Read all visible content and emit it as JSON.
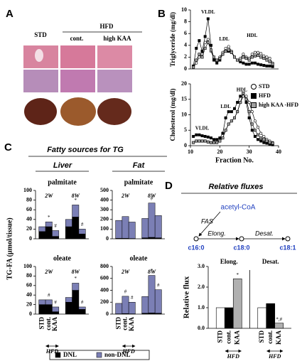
{
  "panel_labels": [
    "A",
    "B",
    "C",
    "D"
  ],
  "panel_a": {
    "std": "STD",
    "hfd": "HFD",
    "cont": "cont.",
    "high_kaa": "high KAA"
  },
  "panel_c": {
    "title": "Fatty sources for TG",
    "columns": [
      "Liver",
      "Fat"
    ],
    "y_label": "TG-FA (µmol/tissue)",
    "hfd": "HFD"
  },
  "panel_d": {
    "title": "Relative fluxes",
    "acetyl_coa": "acetyl-CoA",
    "fas": "FAS",
    "elong": "Elong.",
    "desat": "Desat.",
    "c16": "c16:0",
    "c18_0": "c18:0",
    "c18_1": "c18:1",
    "hfd": "HFD"
  },
  "chart_data": [
    {
      "type": "line",
      "y_label": "Triglyceride (mg/dl)",
      "xlim": [
        10,
        40
      ],
      "ylim": [
        0,
        10
      ],
      "yticks": [
        0,
        2,
        4,
        6,
        8,
        10
      ],
      "annotations": [
        "VLDL",
        "LDL",
        "HDL"
      ],
      "x": [
        11,
        12,
        13,
        14,
        15,
        16,
        17,
        18,
        19,
        20,
        21,
        22,
        23,
        24,
        25,
        26,
        27,
        28,
        29,
        30,
        31,
        32,
        33,
        34,
        35,
        36,
        37,
        38
      ],
      "series": [
        {
          "name": "STD",
          "color": "#ffffff",
          "marker": "circle",
          "values": [
            0.3,
            1.0,
            2.0,
            2.5,
            4.5,
            5.0,
            3.0,
            1.8,
            1.5,
            2.0,
            2.8,
            3.5,
            3.8,
            3.0,
            2.0,
            1.5,
            1.8,
            2.5,
            2.0,
            1.8,
            2.5,
            2.8,
            2.8,
            2.6,
            2.2,
            2.0,
            1.8,
            1.0
          ]
        },
        {
          "name": "HFD",
          "color": "#000000",
          "marker": "square",
          "values": [
            0.5,
            3.5,
            4.8,
            3.0,
            5.5,
            8.5,
            4.0,
            1.5,
            1.0,
            1.5,
            2.5,
            3.0,
            3.0,
            2.8,
            2.0,
            1.5,
            1.2,
            1.0,
            0.8,
            0.8,
            1.0,
            1.0,
            0.8,
            0.7,
            0.6,
            0.5,
            0.5,
            0.4
          ]
        },
        {
          "name": "high KAA-HFD",
          "color": "#a0a0a0",
          "marker": "square",
          "values": [
            0.3,
            1.5,
            2.5,
            2.0,
            3.5,
            4.5,
            3.2,
            2.0,
            1.5,
            1.8,
            2.5,
            3.0,
            3.2,
            2.8,
            2.0,
            1.5,
            1.5,
            2.0,
            1.8,
            1.5,
            2.0,
            2.2,
            2.3,
            2.0,
            1.8,
            1.5,
            1.2,
            0.8
          ]
        }
      ]
    },
    {
      "type": "line",
      "y_label": "Cholesterol (mg/dl)",
      "x_label": "Fraction No.",
      "xlim": [
        10,
        40
      ],
      "xticks": [
        10,
        20,
        30,
        40
      ],
      "ylim": [
        0,
        20
      ],
      "yticks": [
        0,
        5,
        10,
        15,
        20
      ],
      "annotations": [
        "VLDL",
        "LDL",
        "HDL"
      ],
      "legend": "upper right",
      "x": [
        11,
        12,
        13,
        14,
        15,
        16,
        17,
        18,
        19,
        20,
        21,
        22,
        23,
        24,
        25,
        26,
        27,
        28,
        29,
        30,
        31,
        32,
        33,
        34,
        35,
        36,
        37,
        38
      ],
      "series": [
        {
          "name": "STD",
          "color": "#ffffff",
          "marker": "circle",
          "values": [
            1,
            1.5,
            1.5,
            1.5,
            1.5,
            1.2,
            1,
            1,
            1,
            1.5,
            2.5,
            5,
            7,
            8,
            9,
            11,
            14,
            16,
            16,
            14,
            11,
            8,
            6,
            4,
            3,
            2,
            1.5,
            1
          ]
        },
        {
          "name": "HFD",
          "color": "#000000",
          "marker": "square",
          "values": [
            3,
            3.5,
            3.5,
            3.2,
            3,
            2.8,
            2.5,
            2,
            2,
            2.5,
            4,
            9,
            11,
            11,
            12,
            14,
            16,
            17,
            14,
            9,
            5,
            3,
            2,
            1.5,
            1,
            0.8,
            0.5,
            0.3
          ]
        },
        {
          "name": "high KAA -HFD",
          "color": "#a0a0a0",
          "marker": "square",
          "values": [
            1,
            1.5,
            1.5,
            1.5,
            1.5,
            1.2,
            1,
            1,
            1,
            1.5,
            2.5,
            5,
            7,
            8,
            9,
            11,
            14,
            17,
            15,
            11,
            7,
            5,
            3.5,
            2.5,
            2,
            1.5,
            1,
            0.8
          ]
        }
      ]
    },
    {
      "type": "stacked_bar",
      "title": "palmitate",
      "groups": [
        "2W",
        "8W"
      ],
      "ylim": [
        0,
        100
      ],
      "yticks": [
        0,
        20,
        40,
        60,
        80,
        100
      ],
      "significance": [
        null,
        "*",
        "#",
        null,
        "*",
        "#"
      ],
      "series": [
        {
          "name": "DNL",
          "color": "#000000",
          "values": [
            15,
            25,
            5,
            25,
            45,
            10
          ]
        },
        {
          "name": "non-DNL",
          "color": "#7b7fb5",
          "values": [
            10,
            10,
            12,
            15,
            25,
            10
          ]
        }
      ]
    },
    {
      "type": "stacked_bar",
      "title": "palmitate",
      "groups": [
        "2W",
        "8W"
      ],
      "ylim": [
        0,
        500
      ],
      "yticks": [
        0,
        100,
        200,
        300,
        400,
        500
      ],
      "significance": [
        null,
        null,
        null,
        null,
        "#",
        null
      ],
      "series": [
        {
          "color": "#000000",
          "values": [
            5,
            5,
            3,
            10,
            15,
            10
          ]
        },
        {
          "color": "#7b7fb5",
          "values": [
            185,
            225,
            170,
            200,
            355,
            230
          ]
        }
      ]
    },
    {
      "type": "stacked_bar",
      "title": "oleate",
      "groups": [
        "2W",
        "8W"
      ],
      "ylim": [
        0,
        100
      ],
      "yticks": [
        0,
        20,
        40,
        60,
        80,
        100
      ],
      "categories": [
        "STD",
        "cont.",
        "KAA",
        null,
        null,
        null
      ],
      "significance": [
        null,
        "#",
        "#",
        null,
        "*",
        "#"
      ],
      "series": [
        {
          "color": "#000000",
          "values": [
            20,
            20,
            5,
            25,
            50,
            10
          ]
        },
        {
          "color": "#7b7fb5",
          "values": [
            10,
            10,
            10,
            10,
            15,
            5
          ]
        }
      ]
    },
    {
      "type": "stacked_bar",
      "title": "oleate",
      "groups": [
        "2W",
        "8W"
      ],
      "ylim": [
        0,
        800
      ],
      "yticks": [
        0,
        200,
        400,
        600,
        800
      ],
      "categories": [
        "STD",
        "cont.",
        "KAA",
        null,
        null,
        null
      ],
      "significance": [
        null,
        "#",
        "#",
        null,
        "*",
        "#"
      ],
      "series": [
        {
          "color": "#000000",
          "values": [
            5,
            10,
            5,
            15,
            20,
            15
          ]
        },
        {
          "color": "#7b7fb5",
          "values": [
            175,
            290,
            195,
            280,
            630,
            395
          ]
        }
      ]
    },
    {
      "type": "bar",
      "y_label": "Relative flux",
      "groups": [
        "Elong.",
        "Desat."
      ],
      "ylim": [
        0,
        3
      ],
      "yticks": [
        {
          "value": 0,
          "label": "0.0"
        },
        {
          "value": 1,
          "label": "1.0"
        },
        {
          "value": 2,
          "label": "2.0"
        },
        {
          "value": 3,
          "label": "3.0"
        }
      ],
      "categories": [
        "STD",
        "cont.",
        "KAA",
        "STD",
        "cont.",
        "KAA"
      ],
      "colors": [
        "#ffffff",
        "#000000",
        "#b0b0b0",
        "#ffffff",
        "#000000",
        "#b0b0b0"
      ],
      "values": [
        1.0,
        1.0,
        2.4,
        1.0,
        1.2,
        0.25
      ],
      "significance": [
        null,
        null,
        "*",
        null,
        null,
        "*,#"
      ]
    }
  ]
}
